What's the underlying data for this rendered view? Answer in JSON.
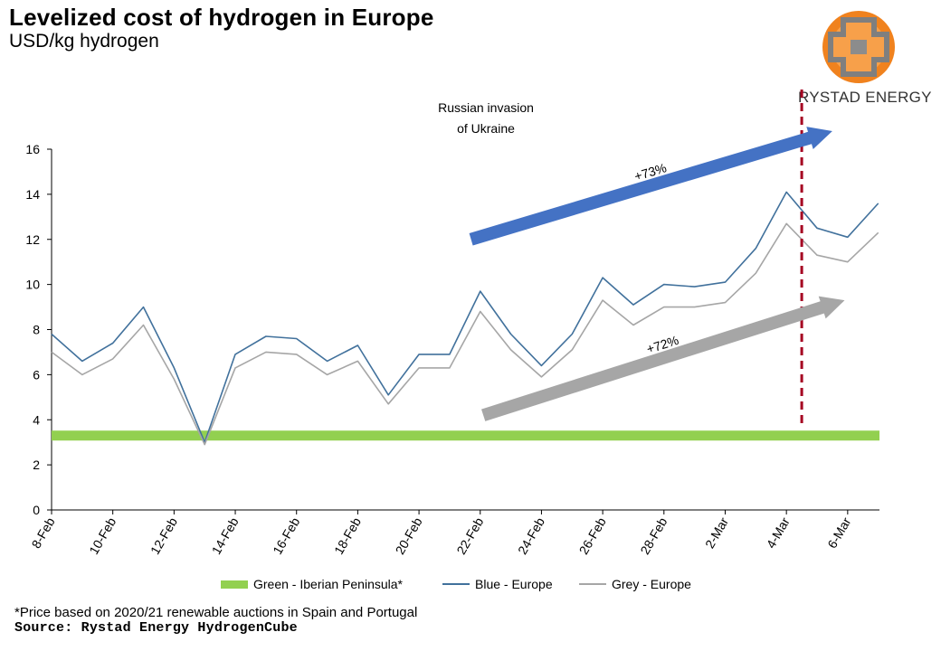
{
  "header": {
    "title": "Levelized cost of hydrogen in Europe",
    "subtitle": "USD/kg hydrogen"
  },
  "logo": {
    "text": "RYSTAD ENERGY",
    "icon": "rystad-globe-logo",
    "colors": [
      "#f0821e",
      "#7f7f7f"
    ]
  },
  "chart_data": {
    "type": "line",
    "title": "Levelized cost of hydrogen in Europe",
    "ylabel": "USD/kg hydrogen",
    "ylim": [
      0,
      16
    ],
    "yticks": [
      0,
      2,
      4,
      6,
      8,
      10,
      12,
      14,
      16
    ],
    "x": [
      "8-Feb",
      "9-Feb",
      "10-Feb",
      "11-Feb",
      "12-Feb",
      "13-Feb",
      "14-Feb",
      "15-Feb",
      "16-Feb",
      "17-Feb",
      "18-Feb",
      "19-Feb",
      "20-Feb",
      "21-Feb",
      "22-Feb",
      "23-Feb",
      "24-Feb",
      "25-Feb",
      "26-Feb",
      "27-Feb",
      "28-Feb",
      "1-Mar",
      "2-Mar",
      "3-Mar",
      "4-Mar",
      "5-Mar",
      "6-Mar",
      "7-Mar"
    ],
    "xtick_labels": [
      "8-Feb",
      "10-Feb",
      "12-Feb",
      "14-Feb",
      "16-Feb",
      "18-Feb",
      "20-Feb",
      "22-Feb",
      "24-Feb",
      "26-Feb",
      "28-Feb",
      "2-Mar",
      "4-Mar",
      "6-Mar"
    ],
    "series": [
      {
        "name": "Green - Iberian Peninsula*",
        "color": "#92d050",
        "style": "band",
        "values": [
          3.3,
          3.3,
          3.3,
          3.3,
          3.3,
          3.3,
          3.3,
          3.3,
          3.3,
          3.3,
          3.3,
          3.3,
          3.3,
          3.3,
          3.3,
          3.3,
          3.3,
          3.3,
          3.3,
          3.3,
          3.3,
          3.3,
          3.3,
          3.3,
          3.3,
          3.3,
          3.3,
          3.3
        ]
      },
      {
        "name": "Blue - Europe",
        "color": "#41719c",
        "style": "line",
        "values": [
          7.8,
          6.6,
          7.4,
          9.0,
          6.3,
          3.0,
          6.9,
          7.7,
          7.6,
          6.6,
          7.3,
          5.1,
          6.9,
          6.9,
          9.7,
          7.8,
          6.4,
          7.8,
          10.3,
          9.1,
          10.0,
          9.9,
          10.1,
          11.6,
          14.1,
          12.5,
          12.1,
          13.6
        ]
      },
      {
        "name": "Grey - Europe",
        "color": "#a6a6a6",
        "style": "line",
        "values": [
          7.0,
          6.0,
          6.7,
          8.2,
          5.8,
          2.9,
          6.3,
          7.0,
          6.9,
          6.0,
          6.6,
          4.7,
          6.3,
          6.3,
          8.8,
          7.1,
          5.9,
          7.1,
          9.3,
          8.2,
          9.0,
          9.0,
          9.2,
          10.5,
          12.7,
          11.3,
          11.0,
          12.3
        ]
      }
    ],
    "annotations": {
      "event_label_line1": "Russian invasion",
      "event_label_line2": "of Ukraine",
      "event_x": 24.5,
      "event_color": "#a50021",
      "blue_arrow": {
        "label": "+73%",
        "color": "#4472c4",
        "from": [
          13.7,
          12.0
        ],
        "to": [
          25.5,
          16.8
        ]
      },
      "grey_arrow": {
        "label": "+72%",
        "color": "#a6a6a6",
        "from": [
          14.1,
          4.2
        ],
        "to": [
          25.9,
          9.3
        ]
      }
    },
    "grid": false,
    "legend_placement": "bottom"
  },
  "legend": {
    "items": [
      {
        "label": "Green - Iberian Peninsula*",
        "color": "#92d050"
      },
      {
        "label": "Blue - Europe",
        "color": "#41719c"
      },
      {
        "label": "Grey - Europe",
        "color": "#a6a6a6"
      }
    ]
  },
  "footer": {
    "note": "*Price based on 2020/21 renewable auctions in Spain and Portugal",
    "source": "Source: Rystad Energy HydrogenCube"
  }
}
